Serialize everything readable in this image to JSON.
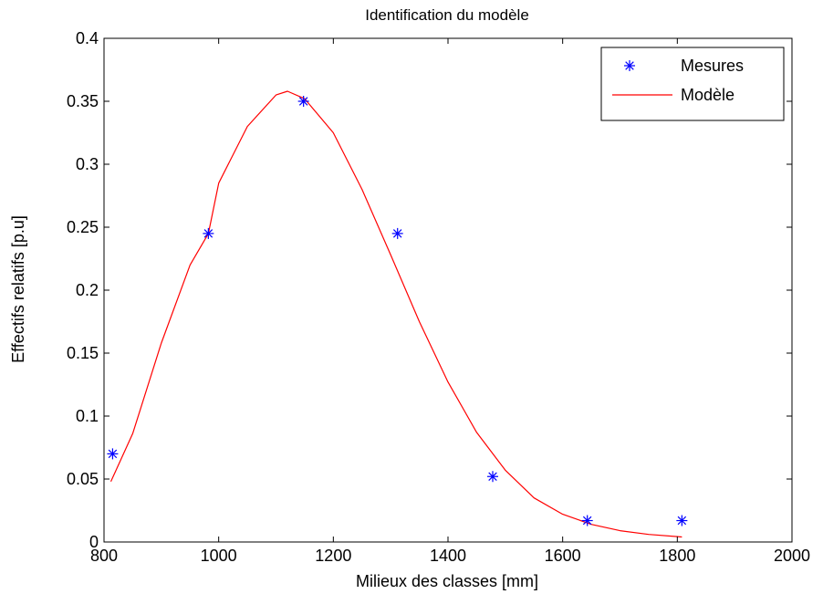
{
  "chart_data": {
    "type": "scatter",
    "title": "Identification du modèle",
    "xlabel": "Milieux des classes [mm]",
    "ylabel": "Effectifs relatifs [p.u]",
    "xlim": [
      800,
      2000
    ],
    "ylim": [
      0,
      0.4
    ],
    "xticks": [
      800,
      1000,
      1200,
      1400,
      1600,
      1800,
      2000
    ],
    "xtick_labels": [
      "800",
      "1000",
      "1200",
      "1400",
      "1600",
      "1800",
      "2000"
    ],
    "yticks": [
      0,
      0.05,
      0.1,
      0.15,
      0.2,
      0.25,
      0.3,
      0.35,
      0.4
    ],
    "ytick_labels": [
      "0",
      "0.05",
      "0.1",
      "0.15",
      "0.2",
      "0.25",
      "0.3",
      "0.35",
      "0.4"
    ],
    "grid": false,
    "legend_position": "top-right",
    "series": [
      {
        "name": "Mesures",
        "kind": "scatter",
        "marker": "asterisk",
        "color": "#0000ff",
        "x": [
          815,
          982,
          1148,
          1312,
          1478,
          1643,
          1808
        ],
        "y": [
          0.07,
          0.245,
          0.35,
          0.245,
          0.052,
          0.017,
          0.017
        ]
      },
      {
        "name": "Modèle",
        "kind": "line",
        "color": "#ff0000",
        "x": [
          812,
          850,
          900,
          950,
          982,
          1000,
          1050,
          1100,
          1120,
          1150,
          1200,
          1250,
          1300,
          1350,
          1400,
          1450,
          1500,
          1550,
          1600,
          1650,
          1700,
          1750,
          1808
        ],
        "y": [
          0.048,
          0.086,
          0.158,
          0.22,
          0.245,
          0.285,
          0.33,
          0.355,
          0.358,
          0.352,
          0.325,
          0.28,
          0.228,
          0.175,
          0.127,
          0.087,
          0.057,
          0.035,
          0.022,
          0.014,
          0.009,
          0.006,
          0.004
        ]
      }
    ]
  }
}
